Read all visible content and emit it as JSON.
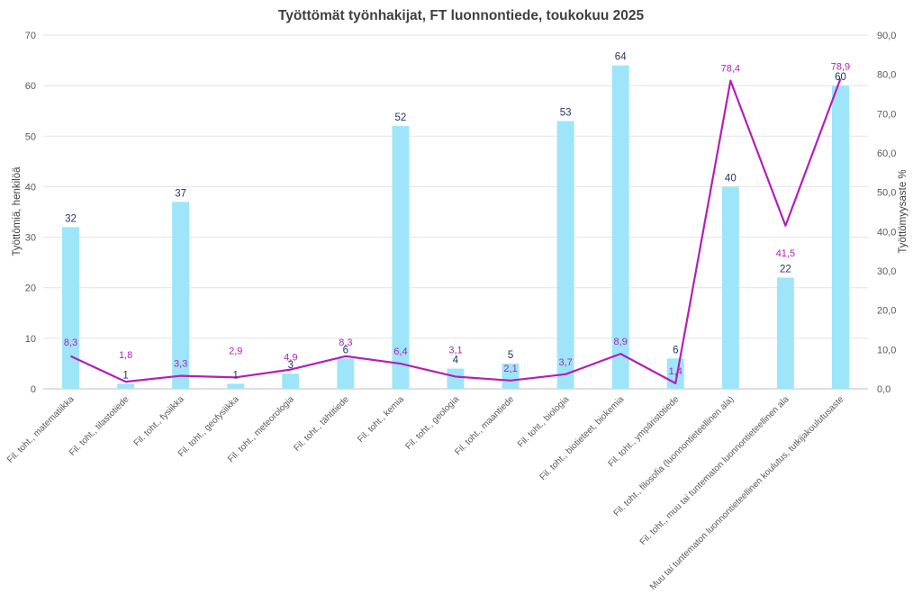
{
  "chart_data": {
    "type": "bar",
    "title": "Työttömät työnhakijat, FT luonnontiede, toukokuu 2025",
    "ylabel": "Työttömiä, henkilöä",
    "y2label": "Työttömyysaste %",
    "ylim": [
      0,
      70
    ],
    "y2lim": [
      0,
      90
    ],
    "y_ticks": [
      "0",
      "10",
      "20",
      "30",
      "40",
      "50",
      "60",
      "70"
    ],
    "y2_ticks": [
      "0,0",
      "10,0",
      "20,0",
      "30,0",
      "40,0",
      "50,0",
      "60,0",
      "70,0",
      "80,0",
      "90,0"
    ],
    "grid": true,
    "categories": [
      "Fil. toht., matematiikka",
      "Fil. toht., tilastotiede",
      "Fil. toht., fysiikka",
      "Fil. toht., geofysiikka",
      "Fil. toht., meteorologia",
      "Fil. toht., tähtitiede",
      "Fil. toht., kemia",
      "Fil. toht., geologia",
      "Fil. toht., maantiede",
      "Fil. toht., biologia",
      "Fil. toht., biotieteet, biokemia",
      "Fil. toht., ympäristötiede",
      "Fil. toht., filosofia (luonnontieteellinen ala)",
      "Fil. toht., muu tai tuntematon luonnontieteellinen ala",
      "Muu tai tuntematon luonnontieteellinen koulutus, tutkijakoulutusaste"
    ],
    "series": [
      {
        "type": "bar",
        "axis": "left",
        "color": "#9ee5fa",
        "label_color": "#1f3864",
        "values": [
          32,
          1,
          37,
          1,
          3,
          6,
          52,
          4,
          5,
          53,
          64,
          6,
          40,
          22,
          60
        ],
        "labels": [
          "32",
          "1",
          "37",
          "1",
          "3",
          "6",
          "52",
          "4",
          "5",
          "53",
          "64",
          "6",
          "40",
          "22",
          "60"
        ]
      },
      {
        "type": "line",
        "axis": "right",
        "color": "#b41fb8",
        "values": [
          8.3,
          1.8,
          3.3,
          2.9,
          4.9,
          8.3,
          6.4,
          3.1,
          2.1,
          3.7,
          8.9,
          1.4,
          78.4,
          41.5,
          78.9
        ],
        "labels": [
          "8,3",
          "1,8",
          "3,3",
          "2,9",
          "4,9",
          "8,3",
          "6,4",
          "3,1",
          "2,1",
          "3,7",
          "8,9",
          "1,4",
          "78,4",
          "41,5",
          "78,9"
        ]
      }
    ]
  }
}
